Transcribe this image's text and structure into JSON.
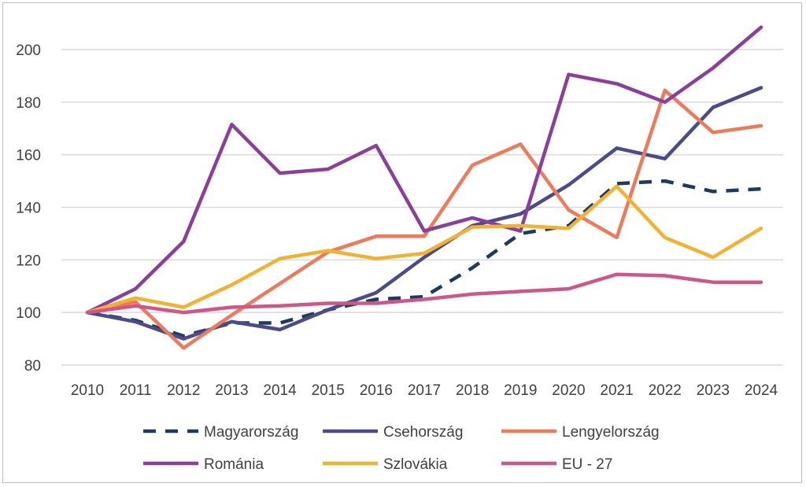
{
  "chart_data": {
    "type": "line",
    "title": "",
    "xlabel": "",
    "ylabel": "",
    "ylim": [
      80,
      210
    ],
    "y_ticks": [
      "80",
      "100",
      "120",
      "140",
      "160",
      "180",
      "200"
    ],
    "grid": "horizontal",
    "legend_position": "bottom",
    "categories": [
      "2010",
      "2011",
      "2012",
      "2013",
      "2014",
      "2015",
      "2016",
      "2017",
      "2018",
      "2019",
      "2020",
      "2021",
      "2022",
      "2023",
      "2024"
    ],
    "series": [
      {
        "name": "Magyarország",
        "color": "#1f3a5f",
        "dash": true,
        "values": [
          100,
          97,
          91,
          96,
          96,
          101,
          105,
          106,
          117,
          130,
          133,
          149,
          150,
          146,
          147
        ]
      },
      {
        "name": "Csehország",
        "color": "#4a4a8c",
        "dash": false,
        "values": [
          100,
          96.5,
          90,
          96.5,
          93.5,
          101,
          107.5,
          121,
          133,
          137.5,
          148.5,
          162.5,
          158.5,
          178,
          185.5
        ]
      },
      {
        "name": "Lengyelország",
        "color": "#ef7a5a",
        "dash": false,
        "values": [
          100,
          104,
          86.5,
          99,
          111,
          123,
          129,
          129,
          156,
          164,
          139,
          128.5,
          184.5,
          168.5,
          171
        ]
      },
      {
        "name": "Románia",
        "color": "#8a3f9c",
        "dash": false,
        "values": [
          100,
          109,
          127,
          171.5,
          153,
          154.5,
          163.5,
          131,
          136,
          131,
          190.5,
          187,
          180,
          193,
          208.5
        ]
      },
      {
        "name": "Szlovákia",
        "color": "#f2b12e",
        "dash": false,
        "values": [
          100,
          105.5,
          102,
          110.5,
          120.5,
          123.5,
          120.5,
          122.5,
          132.5,
          133,
          132,
          148,
          128.5,
          121,
          132
        ]
      },
      {
        "name": "EU - 27",
        "color": "#d0568a",
        "dash": false,
        "values": [
          100,
          102.5,
          100,
          102,
          102.5,
          103.5,
          103.5,
          105,
          107,
          108,
          109,
          114.5,
          114,
          111.5,
          111.5
        ]
      }
    ]
  }
}
